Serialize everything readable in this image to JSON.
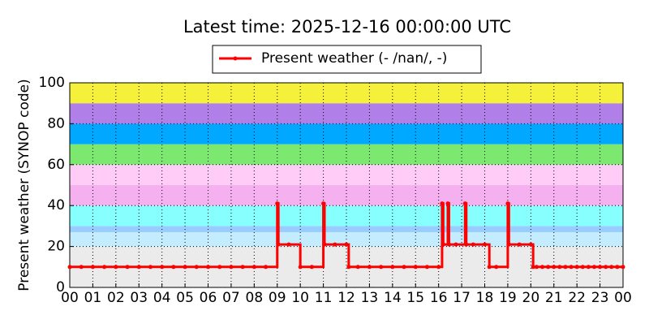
{
  "chart_data": {
    "type": "line",
    "title": "Latest time: 2025-12-16 00:00:00 UTC",
    "y_label": "Present weather (SYNOP code)",
    "xlim": [
      0,
      24
    ],
    "ylim": [
      0,
      100
    ],
    "grid": true,
    "yticks": [
      0,
      20,
      40,
      60,
      80,
      100
    ],
    "xticks": [
      {
        "value": 0,
        "label": "00"
      },
      {
        "value": 1,
        "label": "01"
      },
      {
        "value": 2,
        "label": "02"
      },
      {
        "value": 3,
        "label": "03"
      },
      {
        "value": 4,
        "label": "04"
      },
      {
        "value": 5,
        "label": "05"
      },
      {
        "value": 6,
        "label": "06"
      },
      {
        "value": 7,
        "label": "07"
      },
      {
        "value": 8,
        "label": "08"
      },
      {
        "value": 9,
        "label": "09"
      },
      {
        "value": 10,
        "label": "10"
      },
      {
        "value": 11,
        "label": "11"
      },
      {
        "value": 12,
        "label": "12"
      },
      {
        "value": 13,
        "label": "13"
      },
      {
        "value": 14,
        "label": "14"
      },
      {
        "value": 15,
        "label": "15"
      },
      {
        "value": 16,
        "label": "16"
      },
      {
        "value": 17,
        "label": "17"
      },
      {
        "value": 18,
        "label": "18"
      },
      {
        "value": 19,
        "label": "19"
      },
      {
        "value": 20,
        "label": "20"
      },
      {
        "value": 21,
        "label": "21"
      },
      {
        "value": 22,
        "label": "22"
      },
      {
        "value": 23,
        "label": "23"
      },
      {
        "value": 24,
        "label": "00"
      }
    ],
    "bands": [
      {
        "from": 0,
        "to": 20,
        "color": "#ebebeb"
      },
      {
        "from": 20,
        "to": 27,
        "color": "#c4ecff"
      },
      {
        "from": 27,
        "to": 30,
        "color": "#99ccff"
      },
      {
        "from": 30,
        "to": 40,
        "color": "#88ffff"
      },
      {
        "from": 40,
        "to": 50,
        "color": "#f5b0f0"
      },
      {
        "from": 50,
        "to": 60,
        "color": "#ffccf7"
      },
      {
        "from": 60,
        "to": 70,
        "color": "#7ce870"
      },
      {
        "from": 70,
        "to": 80,
        "color": "#00a8ff"
      },
      {
        "from": 80,
        "to": 90,
        "color": "#b07fe8"
      },
      {
        "from": 90,
        "to": 100,
        "color": "#f5f03a"
      }
    ],
    "series": [
      {
        "name": "Present weather (- /nan/, -)",
        "color": "#ff0000",
        "x": [
          0,
          0.5,
          1,
          1.5,
          2,
          2.5,
          3,
          3.5,
          4,
          4.5,
          5,
          5.5,
          6,
          6.5,
          7,
          7.5,
          8,
          8.5,
          9,
          9.05,
          9.5,
          10,
          10.5,
          11,
          11.05,
          11.5,
          12,
          12.1,
          12.5,
          13,
          13.5,
          14,
          14.5,
          15,
          15.5,
          16,
          16.15,
          16.2,
          16.4,
          16.45,
          16.75,
          17.15,
          17.2,
          17.5,
          18,
          18.2,
          18.5,
          19,
          19.05,
          19.5,
          20,
          20.1,
          20.25,
          20.5,
          20.75,
          21,
          21.25,
          21.5,
          21.75,
          22,
          22.25,
          22.5,
          22.75,
          23,
          23.25,
          23.5,
          23.75,
          24
        ],
        "values": [
          10,
          10,
          10,
          10,
          10,
          10,
          10,
          10,
          10,
          10,
          10,
          10,
          10,
          10,
          10,
          10,
          10,
          10,
          41,
          21,
          21,
          10,
          10,
          41,
          21,
          21,
          21,
          10,
          10,
          10,
          10,
          10,
          10,
          10,
          10,
          10,
          41,
          21,
          41,
          21,
          21,
          41,
          21,
          21,
          21,
          10,
          10,
          41,
          21,
          21,
          21,
          10,
          10,
          10,
          10,
          10,
          10,
          10,
          10,
          10,
          10,
          10,
          10,
          10,
          10,
          10,
          10,
          10
        ]
      }
    ]
  }
}
